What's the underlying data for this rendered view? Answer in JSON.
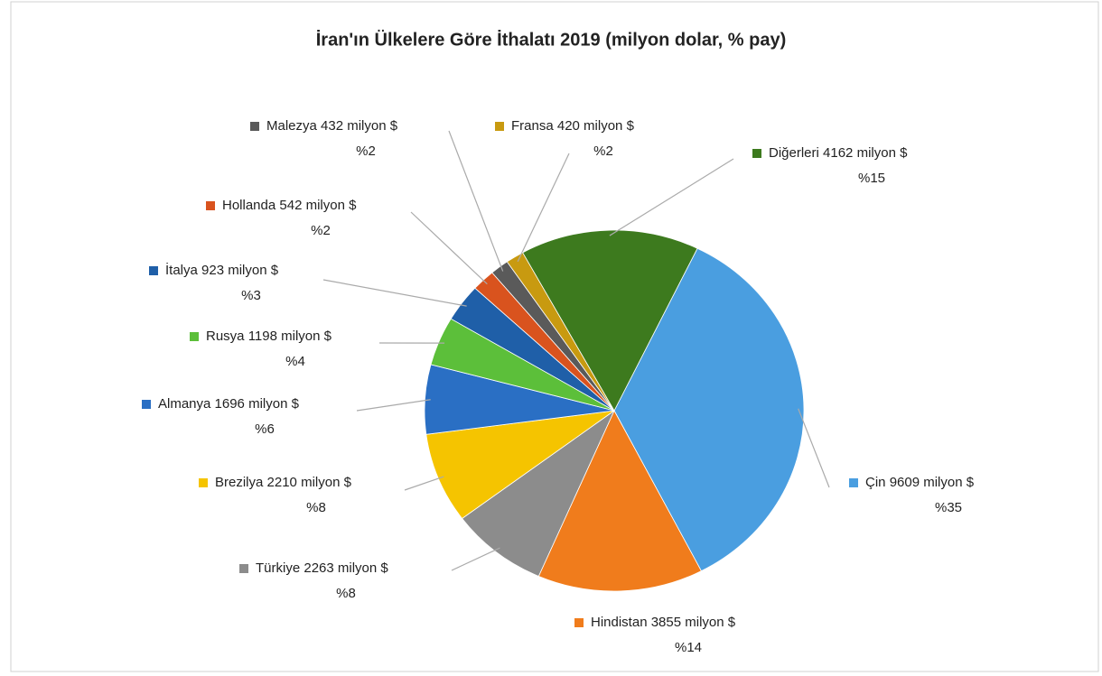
{
  "chart_data": {
    "type": "pie",
    "title": "İran'ın Ülkelere Göre İthalatı 2019 (milyon dolar, % pay)",
    "categories": [
      "Çin",
      "Hindistan",
      "Türkiye",
      "Brezilya",
      "Almanya",
      "Rusya",
      "İtalya",
      "Hollanda",
      "Malezya",
      "Fransa",
      "Diğerleri"
    ],
    "values": [
      9609,
      3855,
      2263,
      2210,
      1696,
      1198,
      923,
      542,
      432,
      420,
      4162
    ],
    "value_labels": [
      "9609 milyon $",
      "3855 milyon $",
      "2263 milyon $",
      "2210 milyon $",
      "1696 milyon $",
      "1198 milyon $",
      "923 milyon $",
      "542 milyon $",
      "432 milyon $",
      "420 milyon $",
      "4162 milyon $"
    ],
    "shares": [
      35,
      14,
      8,
      8,
      6,
      4,
      3,
      2,
      2,
      2,
      15
    ],
    "share_labels": [
      "%35",
      "%14",
      "%8",
      "%8",
      "%6",
      "%4",
      "%3",
      "%2",
      "%2",
      "%2",
      "%15"
    ],
    "colors": [
      "#4a9ee0",
      "#f07c1c",
      "#8c8c8c",
      "#f5c400",
      "#2a6fc4",
      "#5cbf3a",
      "#1f5fa8",
      "#d9531e",
      "#5a5a5a",
      "#c89a10",
      "#3d7a1e"
    ]
  }
}
